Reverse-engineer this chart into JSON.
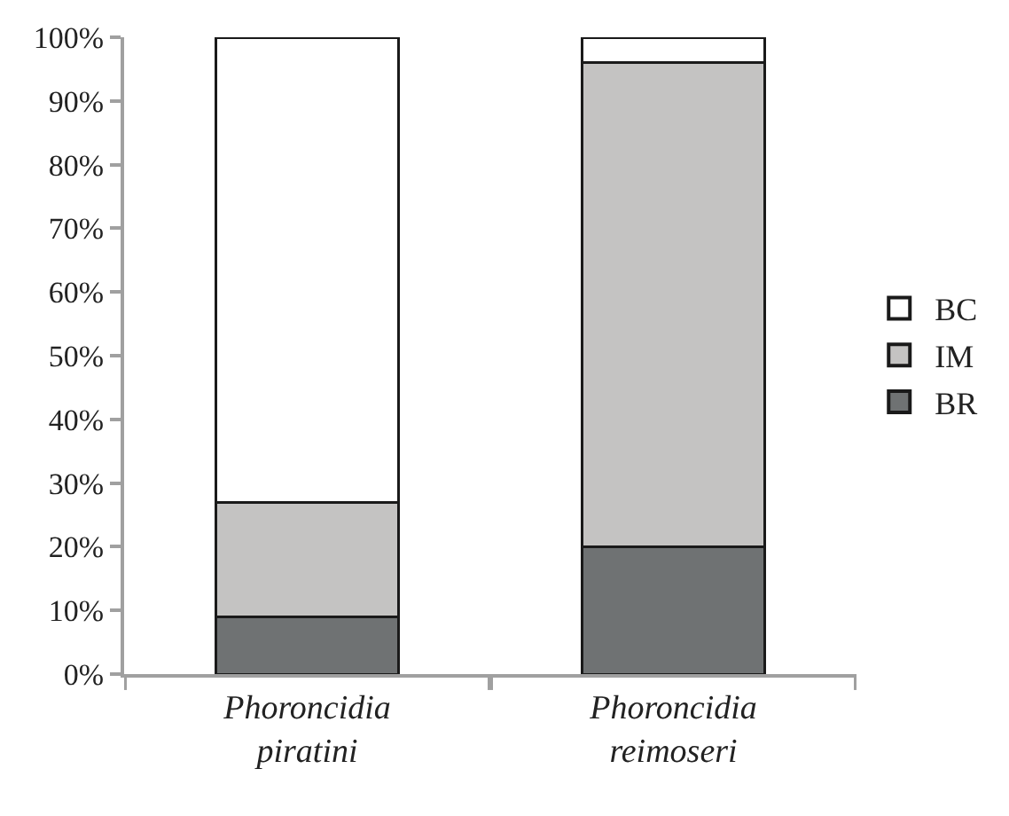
{
  "chart_data": {
    "type": "bar",
    "stacked": true,
    "categories": [
      "Phoroncidia piratini",
      "Phoroncidia reimoseri"
    ],
    "series": [
      {
        "name": "BR",
        "color": "#6f7273",
        "values": [
          9,
          20
        ]
      },
      {
        "name": "IM",
        "color": "#c4c3c2",
        "values": [
          18,
          76
        ]
      },
      {
        "name": "BC",
        "color": "#ffffff",
        "values": [
          73,
          4
        ]
      }
    ],
    "ylim": [
      0,
      100
    ],
    "yticks": [
      {
        "value": 0,
        "label": "0%"
      },
      {
        "value": 10,
        "label": "10%"
      },
      {
        "value": 20,
        "label": "20%"
      },
      {
        "value": 30,
        "label": "30%"
      },
      {
        "value": 40,
        "label": "40%"
      },
      {
        "value": 50,
        "label": "50%"
      },
      {
        "value": 60,
        "label": "60%"
      },
      {
        "value": 70,
        "label": "70%"
      },
      {
        "value": 80,
        "label": "80%"
      },
      {
        "value": 90,
        "label": "90%"
      },
      {
        "value": 100,
        "label": "100%"
      }
    ],
    "legend": "right"
  }
}
